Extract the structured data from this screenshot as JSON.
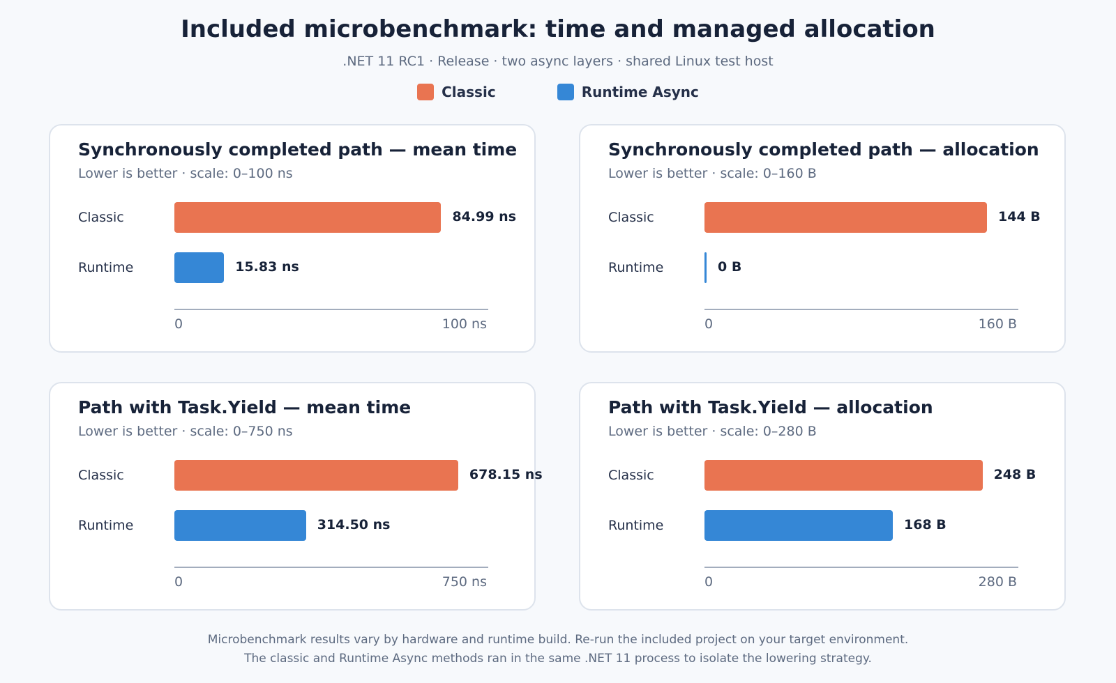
{
  "header": {
    "title": "Included microbenchmark: time and managed allocation",
    "subtitle": ".NET 11 RC1 · Release · two async layers · shared Linux test host"
  },
  "legend": [
    {
      "label": "Classic",
      "color": "#e97451"
    },
    {
      "label": "Runtime Async",
      "color": "#3587d6"
    }
  ],
  "chart_data": [
    {
      "type": "bar",
      "orientation": "horizontal",
      "title": "Synchronously completed path — mean time",
      "subtitle": "Lower is better · scale: 0–100 ns",
      "categories": [
        "Classic",
        "Runtime"
      ],
      "values": [
        84.99,
        15.83
      ],
      "value_labels": [
        "84.99 ns",
        "15.83 ns"
      ],
      "colors": [
        "#e97451",
        "#3587d6"
      ],
      "xlim": [
        0,
        100
      ],
      "tick_min": "0",
      "tick_max": "100 ns"
    },
    {
      "type": "bar",
      "orientation": "horizontal",
      "title": "Synchronously completed path — allocation",
      "subtitle": "Lower is better · scale: 0–160 B",
      "categories": [
        "Classic",
        "Runtime"
      ],
      "values": [
        144,
        0
      ],
      "value_labels": [
        "144 B",
        "0 B"
      ],
      "colors": [
        "#e97451",
        "#3587d6"
      ],
      "xlim": [
        0,
        160
      ],
      "tick_min": "0",
      "tick_max": "160 B"
    },
    {
      "type": "bar",
      "orientation": "horizontal",
      "title": "Path with Task.Yield — mean time",
      "subtitle": "Lower is better · scale: 0–750 ns",
      "categories": [
        "Classic",
        "Runtime"
      ],
      "values": [
        678.15,
        314.5
      ],
      "value_labels": [
        "678.15 ns",
        "314.50 ns"
      ],
      "colors": [
        "#e97451",
        "#3587d6"
      ],
      "xlim": [
        0,
        750
      ],
      "tick_min": "0",
      "tick_max": "750 ns"
    },
    {
      "type": "bar",
      "orientation": "horizontal",
      "title": "Path with Task.Yield — allocation",
      "subtitle": "Lower is better · scale: 0–280 B",
      "categories": [
        "Classic",
        "Runtime"
      ],
      "values": [
        248,
        168
      ],
      "value_labels": [
        "248 B",
        "168 B"
      ],
      "colors": [
        "#e97451",
        "#3587d6"
      ],
      "xlim": [
        0,
        280
      ],
      "tick_min": "0",
      "tick_max": "280 B"
    }
  ],
  "footer": {
    "line1": "Microbenchmark results vary by hardware and runtime build. Re-run the included project on your target environment.",
    "line2": "The classic and Runtime Async methods ran in the same .NET 11 process to isolate the lowering strategy."
  }
}
